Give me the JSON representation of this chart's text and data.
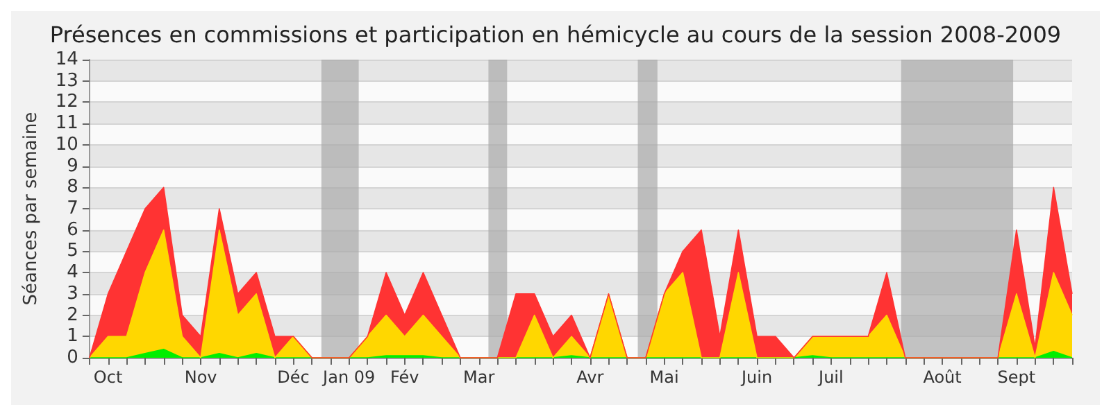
{
  "chart_data": {
    "type": "area",
    "stacked": true,
    "title": "Présences en commissions et participation en hémicycle au cours de la session 2008-2009",
    "ylabel": "Séances par semaine",
    "categories": [
      null,
      "Oct",
      null,
      null,
      null,
      null,
      "Nov",
      null,
      null,
      null,
      null,
      "Déc",
      null,
      null,
      "Jan 09",
      null,
      null,
      "Fév",
      null,
      null,
      null,
      "Mar",
      null,
      null,
      null,
      null,
      null,
      "Avr",
      null,
      null,
      null,
      "Mai",
      null,
      null,
      null,
      null,
      "Juin",
      null,
      null,
      null,
      "Juil",
      null,
      null,
      null,
      null,
      null,
      "Août",
      null,
      null,
      null,
      "Sept",
      null,
      null,
      null
    ],
    "series": [
      {
        "color": "#00ee00",
        "values": [
          0,
          0,
          0,
          0.2,
          0.4,
          0,
          0,
          0.2,
          0,
          0.2,
          0,
          0,
          0,
          0,
          0,
          0,
          0.1,
          0.1,
          0.1,
          0,
          0,
          0,
          0,
          0,
          0,
          0,
          0.1,
          0,
          0,
          0,
          0,
          0,
          0,
          0,
          0,
          0,
          0,
          0,
          0,
          0.1,
          0,
          0,
          0,
          0,
          0,
          0,
          0,
          0,
          0,
          0,
          0,
          0,
          0.3,
          0
        ]
      },
      {
        "color": "#ffd700",
        "values": [
          0,
          1,
          1,
          3.8,
          5.6,
          1,
          0,
          5.8,
          2,
          2.8,
          0,
          1,
          0,
          0,
          0,
          1,
          1.9,
          0.9,
          1.9,
          1,
          0,
          0,
          0,
          0,
          2,
          0,
          0.9,
          0,
          3,
          0,
          0,
          3,
          4,
          0,
          0,
          4,
          0,
          0,
          0,
          0.9,
          1,
          1,
          1,
          2,
          0,
          0,
          0,
          0,
          0,
          0,
          3,
          0,
          3.7,
          2
        ]
      },
      {
        "color": "#ff3333",
        "values": [
          0,
          2,
          4,
          3,
          2,
          1,
          1,
          1,
          1,
          1,
          1,
          0,
          0,
          0,
          0,
          0,
          2,
          1,
          2,
          1,
          0,
          0,
          0,
          3,
          1,
          1,
          1,
          0,
          0,
          0,
          0,
          0,
          1,
          6,
          1,
          2,
          1,
          1,
          0,
          0,
          0,
          0,
          0,
          2,
          0,
          0,
          0,
          0,
          0,
          0,
          3,
          0.5,
          4,
          1
        ]
      }
    ],
    "ylim": [
      0,
      14
    ],
    "yticks": [
      0,
      1,
      2,
      3,
      4,
      5,
      6,
      7,
      8,
      9,
      10,
      11,
      12,
      13,
      14
    ],
    "grid": "y"
  }
}
